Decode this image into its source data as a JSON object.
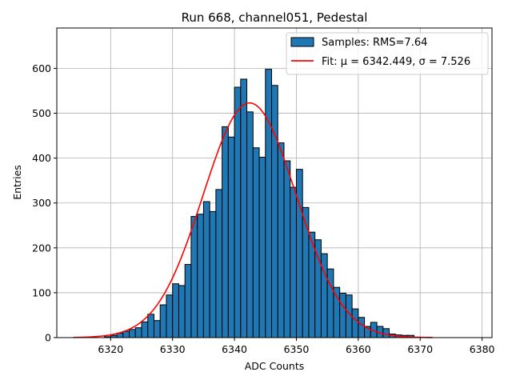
{
  "chart_data": {
    "type": "bar",
    "title": "Run 668, channel051, Pedestal",
    "xlabel": "ADC Counts",
    "ylabel": "Entries",
    "xlim": [
      6311.3,
      6381.6
    ],
    "ylim": [
      0,
      690
    ],
    "xticks": [
      6320,
      6330,
      6340,
      6350,
      6360,
      6370,
      6380
    ],
    "yticks": [
      0,
      100,
      200,
      300,
      400,
      500,
      600
    ],
    "grid": true,
    "legend_position": "top-right",
    "bin_width": 1,
    "bins": [
      {
        "x": 6319,
        "y": 2
      },
      {
        "x": 6320,
        "y": 5
      },
      {
        "x": 6321,
        "y": 10
      },
      {
        "x": 6322,
        "y": 14
      },
      {
        "x": 6323,
        "y": 18
      },
      {
        "x": 6324,
        "y": 22
      },
      {
        "x": 6325,
        "y": 35
      },
      {
        "x": 6326,
        "y": 52
      },
      {
        "x": 6327,
        "y": 38
      },
      {
        "x": 6328,
        "y": 73
      },
      {
        "x": 6329,
        "y": 95
      },
      {
        "x": 6330,
        "y": 120
      },
      {
        "x": 6331,
        "y": 116
      },
      {
        "x": 6332,
        "y": 163
      },
      {
        "x": 6333,
        "y": 270
      },
      {
        "x": 6334,
        "y": 275
      },
      {
        "x": 6335,
        "y": 303
      },
      {
        "x": 6336,
        "y": 281
      },
      {
        "x": 6337,
        "y": 330
      },
      {
        "x": 6338,
        "y": 470
      },
      {
        "x": 6339,
        "y": 447
      },
      {
        "x": 6340,
        "y": 558
      },
      {
        "x": 6341,
        "y": 576
      },
      {
        "x": 6342,
        "y": 503
      },
      {
        "x": 6343,
        "y": 423
      },
      {
        "x": 6344,
        "y": 402
      },
      {
        "x": 6345,
        "y": 598
      },
      {
        "x": 6346,
        "y": 562
      },
      {
        "x": 6347,
        "y": 434
      },
      {
        "x": 6348,
        "y": 394
      },
      {
        "x": 6349,
        "y": 335
      },
      {
        "x": 6350,
        "y": 375
      },
      {
        "x": 6351,
        "y": 290
      },
      {
        "x": 6352,
        "y": 235
      },
      {
        "x": 6353,
        "y": 218
      },
      {
        "x": 6354,
        "y": 187
      },
      {
        "x": 6355,
        "y": 153
      },
      {
        "x": 6356,
        "y": 112
      },
      {
        "x": 6357,
        "y": 99
      },
      {
        "x": 6358,
        "y": 95
      },
      {
        "x": 6359,
        "y": 64
      },
      {
        "x": 6360,
        "y": 45
      },
      {
        "x": 6361,
        "y": 25
      },
      {
        "x": 6362,
        "y": 34
      },
      {
        "x": 6363,
        "y": 25
      },
      {
        "x": 6364,
        "y": 20
      },
      {
        "x": 6365,
        "y": 8
      },
      {
        "x": 6366,
        "y": 6
      },
      {
        "x": 6367,
        "y": 5
      },
      {
        "x": 6368,
        "y": 5
      },
      {
        "x": 6369,
        "y": 1
      }
    ],
    "fit": {
      "label": "Fit: μ = 6342.449, σ = 7.526",
      "mu": 6342.449,
      "sigma": 7.526,
      "amplitude": 523,
      "x_range": [
        6314,
        6372
      ]
    },
    "series": [
      {
        "name": "Samples: RMS=7.64",
        "kind": "histogram"
      },
      {
        "name": "Fit: μ = 6342.449, σ = 7.526",
        "kind": "line"
      }
    ]
  },
  "colors": {
    "bar_fill": "#1f77b4",
    "bar_edge": "#000000",
    "fit_line": "#ff0000",
    "grid": "#b0b0b0"
  }
}
